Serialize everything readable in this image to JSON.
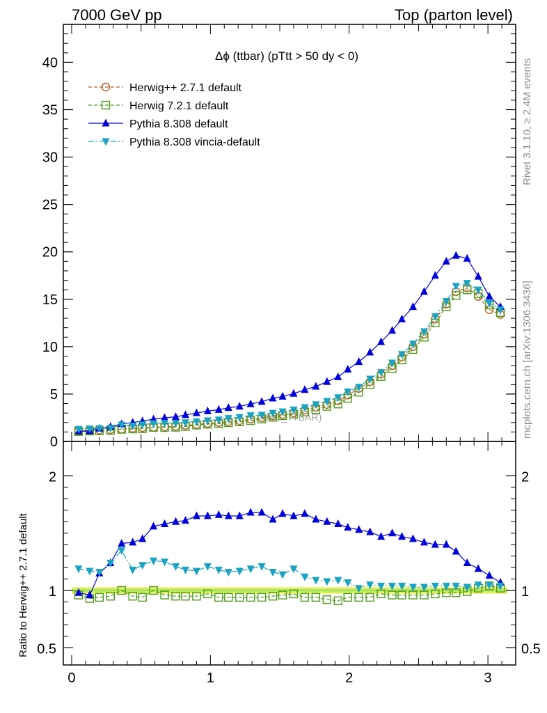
{
  "header": {
    "left": "7000 GeV pp",
    "right": "Top (parton level)"
  },
  "side_labels": {
    "rivet": "Rivet 3.1.10, ≥ 2.4M events",
    "mcplots": "mcplots.cern.ch [arXiv:1306.3436]"
  },
  "colors": {
    "herwig_pp": "#b35b1e",
    "herwig7": "#4c9a1a",
    "pythia": "#0000dd",
    "vincia": "#1aa3c2",
    "band_yellow": "#f5f57a",
    "band_green": "#99e04a"
  },
  "chart_data": [
    {
      "type": "line",
      "title": "Δϕ (ttbar) (pTtt > 50 dy < 0)",
      "watermark": "(MC_TTBAR)",
      "ylim": [
        0,
        44
      ],
      "xlim": [
        -0.06,
        3.2
      ],
      "yticks": [
        0,
        5,
        10,
        15,
        20,
        25,
        30,
        35,
        40
      ],
      "ytick_labels": [
        "0",
        "5",
        "10",
        "15",
        "20",
        "25",
        "30",
        "35",
        "40"
      ],
      "grid": false,
      "legend_position": "top-left",
      "x": [
        0.05,
        0.13,
        0.2,
        0.28,
        0.36,
        0.44,
        0.51,
        0.59,
        0.67,
        0.75,
        0.82,
        0.9,
        0.98,
        1.06,
        1.13,
        1.21,
        1.29,
        1.37,
        1.45,
        1.52,
        1.6,
        1.68,
        1.76,
        1.84,
        1.92,
        1.99,
        2.07,
        2.15,
        2.23,
        2.31,
        2.38,
        2.46,
        2.54,
        2.62,
        2.7,
        2.77,
        2.85,
        2.93,
        3.01,
        3.09
      ],
      "series": [
        {
          "name": "Herwig++ 2.7.1 default",
          "marker": "open-circle",
          "line": "dashed",
          "color": "#b35b1e",
          "values": [
            1.1,
            1.15,
            1.2,
            1.25,
            1.3,
            1.4,
            1.45,
            1.5,
            1.55,
            1.6,
            1.7,
            1.8,
            1.9,
            2.0,
            2.1,
            2.2,
            2.35,
            2.5,
            2.7,
            2.85,
            3.0,
            3.3,
            3.6,
            3.9,
            4.3,
            4.9,
            5.6,
            6.3,
            7.1,
            8.0,
            8.9,
            10.0,
            11.3,
            12.9,
            14.5,
            15.8,
            16.2,
            15.3,
            13.9,
            13.4
          ]
        },
        {
          "name": "Herwig 7.2.1 default",
          "marker": "open-square",
          "line": "dashed",
          "color": "#4c9a1a",
          "values": [
            1.05,
            1.1,
            1.12,
            1.17,
            1.28,
            1.32,
            1.35,
            1.48,
            1.47,
            1.5,
            1.58,
            1.72,
            1.82,
            1.87,
            1.98,
            2.07,
            2.2,
            2.36,
            2.55,
            2.72,
            2.87,
            3.1,
            3.35,
            3.7,
            3.95,
            4.55,
            5.2,
            6.0,
            6.85,
            7.7,
            8.6,
            9.7,
            11.0,
            12.5,
            14.2,
            15.4,
            16.0,
            15.6,
            14.4,
            13.6
          ]
        },
        {
          "name": "Pythia 8.308 default",
          "marker": "filled-triangle-up",
          "line": "solid",
          "color": "#0000dd",
          "values": [
            1.07,
            1.1,
            1.37,
            1.55,
            1.85,
            2.0,
            2.15,
            2.35,
            2.5,
            2.6,
            2.8,
            3.0,
            3.2,
            3.35,
            3.55,
            3.7,
            3.95,
            4.2,
            4.55,
            4.75,
            5.05,
            5.45,
            5.8,
            6.3,
            6.8,
            7.6,
            8.4,
            9.4,
            10.5,
            11.7,
            12.9,
            14.2,
            15.8,
            17.5,
            19.0,
            19.6,
            19.3,
            17.4,
            15.3,
            14.2
          ]
        },
        {
          "name": "Pythia 8.308 vincia-default",
          "marker": "filled-triangle-down",
          "line": "dashdot",
          "color": "#1aa3c2",
          "values": [
            1.3,
            1.35,
            1.38,
            1.42,
            1.75,
            1.65,
            1.78,
            1.9,
            1.95,
            1.95,
            2.0,
            2.1,
            2.2,
            2.3,
            2.45,
            2.55,
            2.75,
            2.8,
            3.0,
            3.15,
            3.35,
            3.6,
            3.9,
            4.25,
            4.65,
            5.25,
            5.75,
            6.6,
            7.3,
            8.3,
            9.2,
            10.3,
            11.6,
            13.2,
            14.8,
            16.4,
            16.7,
            16.0,
            14.6,
            13.9
          ]
        }
      ]
    },
    {
      "type": "line",
      "ylabel": "Ratio to Herwig++ 2.7.1 default",
      "ylim": [
        0.35,
        2.3
      ],
      "xlim": [
        -0.06,
        3.2
      ],
      "yticks": [
        0.5,
        1,
        2
      ],
      "ytick_labels": [
        "0.5",
        "1",
        "2"
      ],
      "xticks": [
        0,
        1,
        2,
        3
      ],
      "xtick_labels": [
        "0",
        "1",
        "2",
        "3"
      ],
      "reference_band": [
        0.97,
        1.03
      ],
      "x": [
        0.05,
        0.13,
        0.2,
        0.28,
        0.36,
        0.44,
        0.51,
        0.59,
        0.67,
        0.75,
        0.82,
        0.9,
        0.98,
        1.06,
        1.13,
        1.21,
        1.29,
        1.37,
        1.45,
        1.52,
        1.6,
        1.68,
        1.76,
        1.84,
        1.92,
        1.99,
        2.07,
        2.15,
        2.23,
        2.31,
        2.38,
        2.46,
        2.54,
        2.62,
        2.7,
        2.77,
        2.85,
        2.93,
        3.01,
        3.09
      ],
      "series": [
        {
          "name": "Herwig 7.2.1 default",
          "marker": "open-square",
          "line": "dashed",
          "color": "#4c9a1a",
          "values": [
            0.96,
            0.93,
            0.94,
            0.95,
            1.0,
            0.95,
            0.94,
            1.0,
            0.96,
            0.95,
            0.95,
            0.95,
            0.97,
            0.94,
            0.94,
            0.94,
            0.94,
            0.94,
            0.95,
            0.96,
            0.97,
            0.94,
            0.94,
            0.92,
            0.91,
            0.94,
            0.94,
            0.94,
            0.97,
            0.96,
            0.96,
            0.96,
            0.96,
            0.97,
            0.98,
            0.98,
            0.99,
            1.02,
            1.04,
            1.02
          ]
        },
        {
          "name": "Pythia 8.308 default",
          "marker": "filled-triangle-up",
          "line": "solid",
          "color": "#0000dd",
          "values": [
            0.98,
            0.96,
            1.15,
            1.24,
            1.41,
            1.42,
            1.45,
            1.56,
            1.58,
            1.6,
            1.61,
            1.65,
            1.65,
            1.66,
            1.65,
            1.65,
            1.68,
            1.68,
            1.62,
            1.67,
            1.65,
            1.67,
            1.62,
            1.6,
            1.58,
            1.55,
            1.53,
            1.51,
            1.47,
            1.5,
            1.47,
            1.45,
            1.42,
            1.4,
            1.4,
            1.34,
            1.24,
            1.19,
            1.13,
            1.07
          ]
        },
        {
          "name": "Pythia 8.308 vincia-default",
          "marker": "filled-triangle-down",
          "line": "dashdot",
          "color": "#1aa3c2",
          "values": [
            1.19,
            1.17,
            1.16,
            1.24,
            1.35,
            1.18,
            1.22,
            1.26,
            1.25,
            1.21,
            1.18,
            1.17,
            1.21,
            1.18,
            1.16,
            1.17,
            1.19,
            1.21,
            1.16,
            1.14,
            1.19,
            1.12,
            1.09,
            1.08,
            1.09,
            1.07,
            1.02,
            1.05,
            1.04,
            1.04,
            1.04,
            1.03,
            1.03,
            1.04,
            1.04,
            1.04,
            1.03,
            1.05,
            1.05,
            1.04
          ]
        }
      ]
    }
  ]
}
